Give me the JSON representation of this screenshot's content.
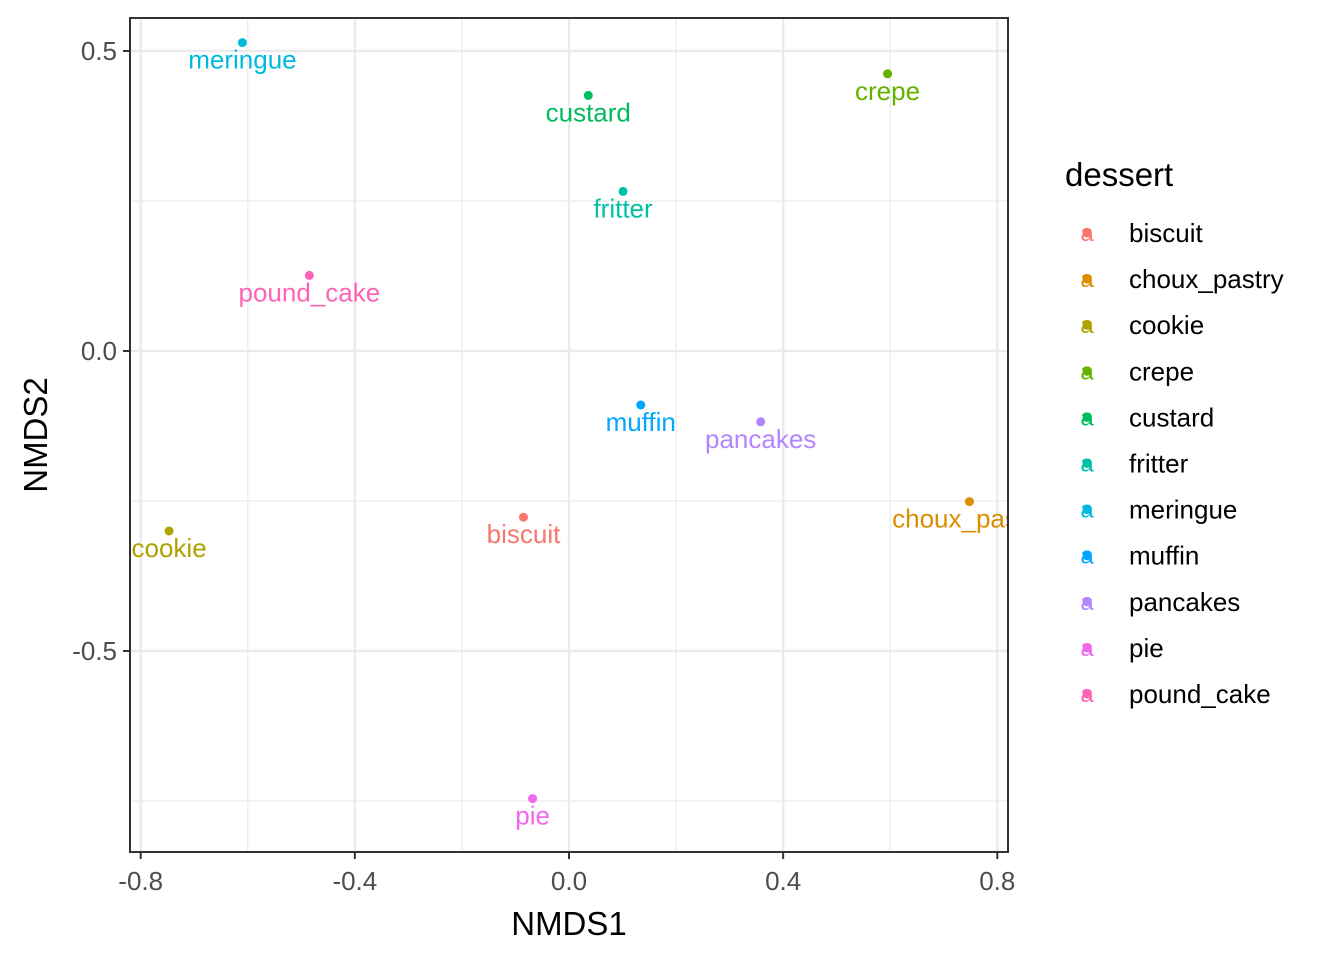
{
  "chart_data": {
    "type": "scatter",
    "title": "",
    "xlabel": "NMDS1",
    "ylabel": "NMDS2",
    "xlim": [
      -0.82,
      0.82
    ],
    "ylim": [
      -0.835,
      0.555
    ],
    "x_ticks": [
      -0.8,
      -0.4,
      0.0,
      0.4,
      0.8
    ],
    "x_tick_labels": [
      "-0.8",
      "-0.4",
      "0.0",
      "0.4",
      "0.8"
    ],
    "y_ticks": [
      -0.5,
      0.0,
      0.5
    ],
    "y_tick_labels": [
      "-0.5",
      "0.0",
      "0.5"
    ],
    "x_minor_ticks": [
      -0.6,
      -0.2,
      0.2,
      0.6
    ],
    "y_minor_ticks": [
      -0.75,
      -0.25,
      0.25
    ],
    "grid": true,
    "legend_title": "dessert",
    "legend_position": "right",
    "legend_key_glyph": "a",
    "points": [
      {
        "name": "biscuit",
        "x": -0.085,
        "y": -0.277,
        "color": "#F8766D"
      },
      {
        "name": "choux_pastry",
        "x": 0.748,
        "y": -0.251,
        "color": "#DB8E00"
      },
      {
        "name": "cookie",
        "x": -0.747,
        "y": -0.3,
        "color": "#AEA200"
      },
      {
        "name": "crepe",
        "x": 0.595,
        "y": 0.462,
        "color": "#64B200"
      },
      {
        "name": "custard",
        "x": 0.036,
        "y": 0.426,
        "color": "#00BD5C"
      },
      {
        "name": "fritter",
        "x": 0.101,
        "y": 0.266,
        "color": "#00C1A7"
      },
      {
        "name": "meringue",
        "x": -0.61,
        "y": 0.514,
        "color": "#00BADE"
      },
      {
        "name": "muffin",
        "x": 0.134,
        "y": -0.09,
        "color": "#00A6FF"
      },
      {
        "name": "pancakes",
        "x": 0.358,
        "y": -0.118,
        "color": "#B385FF"
      },
      {
        "name": "pie",
        "x": -0.068,
        "y": -0.746,
        "color": "#EF67EB"
      },
      {
        "name": "pound_cake",
        "x": -0.485,
        "y": 0.126,
        "color": "#FF63B6"
      }
    ]
  }
}
